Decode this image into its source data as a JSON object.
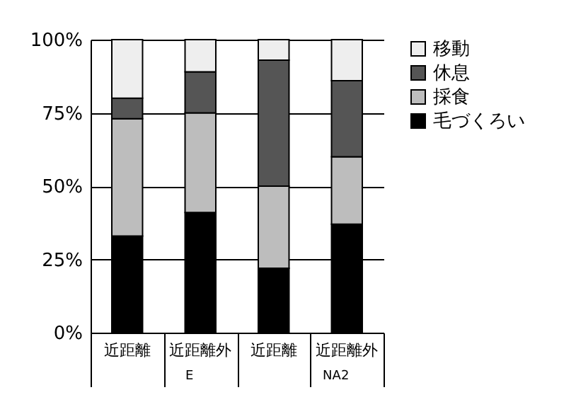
{
  "chart_data": {
    "type": "bar",
    "stacked": true,
    "categories": [
      "近距離",
      "近距離外",
      "近距離",
      "近距離外"
    ],
    "annotations": [
      "E",
      "NA2"
    ],
    "series": [
      {
        "name": "毛づくろい",
        "color": "#000000",
        "values": [
          33,
          41,
          22,
          37
        ]
      },
      {
        "name": "採食",
        "color": "#bdbdbd",
        "values": [
          40,
          34,
          28,
          23
        ]
      },
      {
        "name": "休息",
        "color": "#555555",
        "values": [
          7,
          14,
          43,
          26
        ]
      },
      {
        "name": "移動",
        "color": "#eeeeee",
        "values": [
          20,
          11,
          7,
          14
        ]
      }
    ],
    "ylim": [
      0,
      100
    ],
    "yticks": [
      {
        "value": 0,
        "label": "0%"
      },
      {
        "value": 25,
        "label": "25%"
      },
      {
        "value": 50,
        "label": "50%"
      },
      {
        "value": 75,
        "label": "75%"
      },
      {
        "value": 100,
        "label": "100%"
      }
    ],
    "grid": "y",
    "legend": "right"
  }
}
